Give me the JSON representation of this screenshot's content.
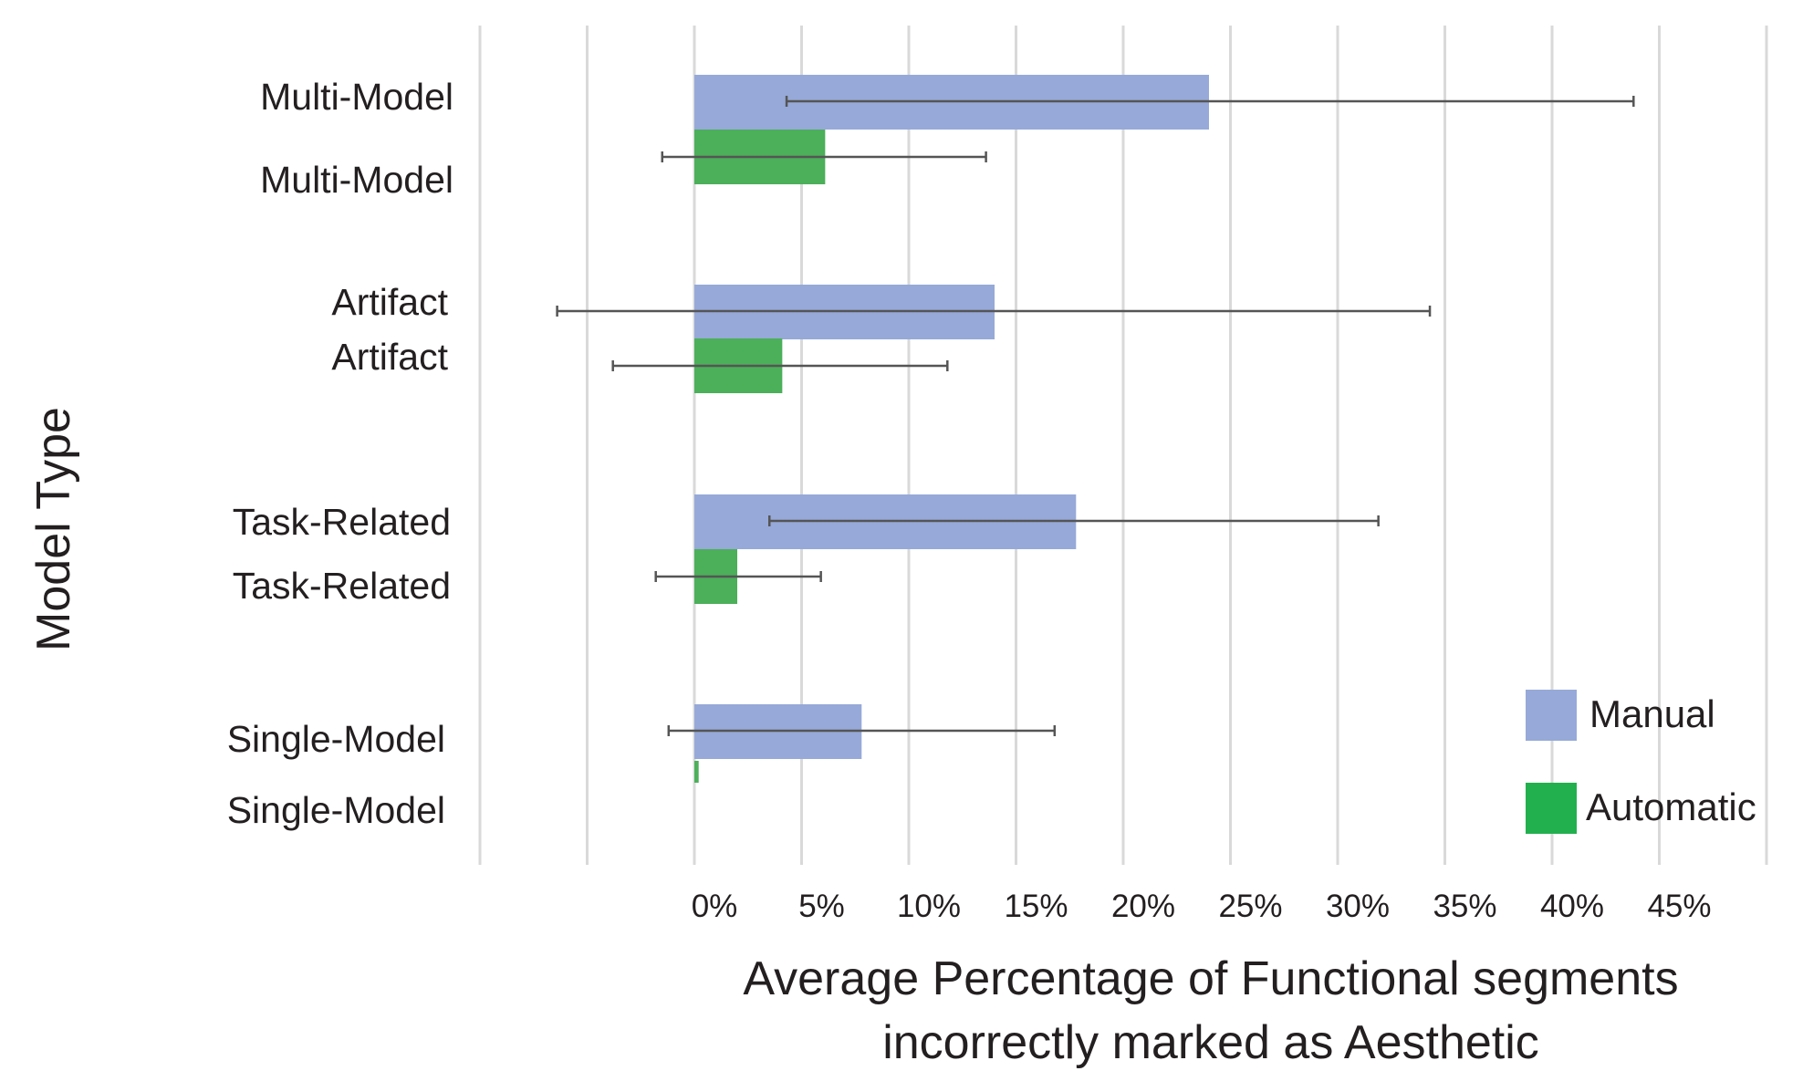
{
  "chart_data": {
    "type": "bar",
    "orientation": "horizontal",
    "categories": [
      "Multi-Model",
      "Artifact",
      "Task-Related",
      "Single-Model"
    ],
    "series": [
      {
        "name": "Manual",
        "color": "#96a9d8",
        "values": [
          24,
          14,
          17.8,
          7.8
        ],
        "error_low": [
          4.3,
          -6.4,
          3.5,
          -1.2
        ],
        "error_high": [
          43.8,
          34.3,
          31.9,
          16.8
        ]
      },
      {
        "name": "Automatic",
        "color": "#4caf5a",
        "values": [
          6.1,
          4.1,
          2,
          0.2
        ],
        "error_low": [
          -1.5,
          -3.8,
          -1.8,
          null
        ],
        "error_high": [
          13.6,
          11.8,
          5.9,
          null
        ]
      }
    ],
    "xlim": [
      -10,
      50
    ],
    "x_ticks": [
      0,
      5,
      10,
      15,
      20,
      25,
      30,
      35,
      40,
      45
    ],
    "x_tick_labels": [
      "0%",
      "5%",
      "10%",
      "15%",
      "20%",
      "25%",
      "30%",
      "35%",
      "40%",
      "45%"
    ],
    "xlabel": [
      "Average Percentage of Functional segments",
      "incorrectly marked as Aesthetic"
    ],
    "ylabel": "Model Type",
    "grid": true,
    "legend_position": "bottom-right",
    "legend_swatch_colors": [
      "#96a9d8",
      "#22b04e"
    ]
  }
}
